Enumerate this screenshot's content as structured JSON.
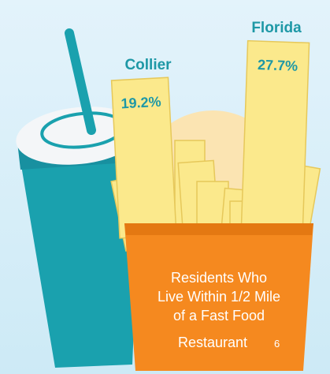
{
  "chart_data": {
    "type": "bar",
    "categories": [
      "Collier",
      "Florida"
    ],
    "values": [
      19.2,
      27.7
    ],
    "value_labels": [
      "19.2%",
      "27.7%"
    ],
    "color": "#fbe98c",
    "title": "Residents Who Live Within 1/2 Mile of a Fast Food Restaurant",
    "footnote": "6"
  }
}
